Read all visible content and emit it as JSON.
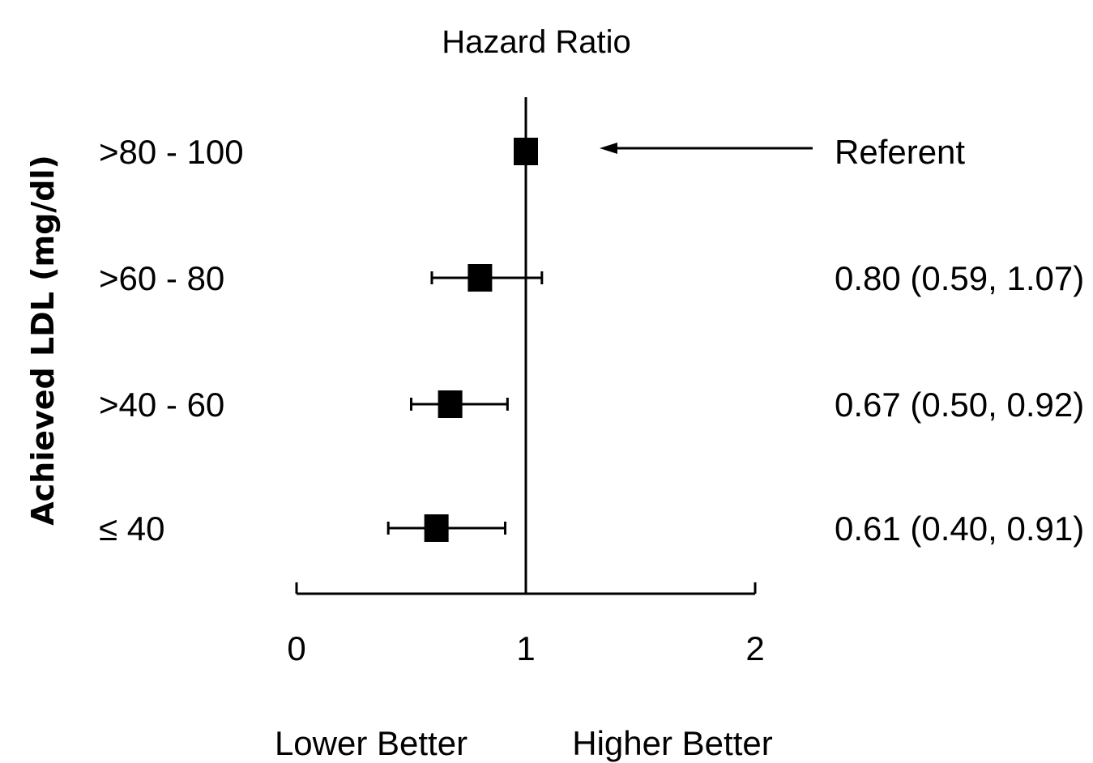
{
  "chart_data": {
    "type": "forest",
    "title": "Hazard Ratio",
    "ylabel": "Achieved LDL (mg/dl)",
    "xlim": [
      0,
      2
    ],
    "xticks": [
      "0",
      "1",
      "2"
    ],
    "reference_line_x": 1,
    "direction_labels": {
      "left": "Lower Better",
      "right": "Higher Better"
    },
    "rows": [
      {
        "category": ">80 - 100",
        "hr": 1.0,
        "ci_low": null,
        "ci_high": null,
        "label": "Referent",
        "is_referent": true
      },
      {
        "category": ">60 - 80",
        "hr": 0.8,
        "ci_low": 0.59,
        "ci_high": 1.07,
        "label": "0.80 (0.59, 1.07)",
        "is_referent": false
      },
      {
        "category": ">40 - 60",
        "hr": 0.67,
        "ci_low": 0.5,
        "ci_high": 0.92,
        "label": "0.67 (0.50, 0.92)",
        "is_referent": false
      },
      {
        "category": "≤ 40",
        "hr": 0.61,
        "ci_low": 0.4,
        "ci_high": 0.91,
        "label": "0.61 (0.40, 0.91)",
        "is_referent": false
      }
    ],
    "colors": {
      "ink": "#000000",
      "background": "#ffffff"
    }
  }
}
